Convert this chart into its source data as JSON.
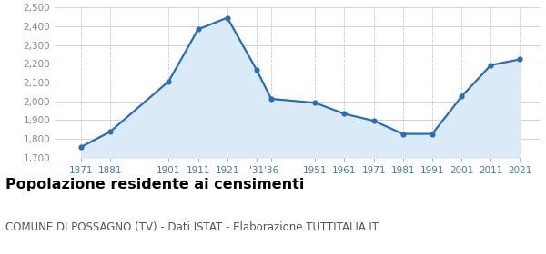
{
  "years": [
    1871,
    1881,
    1901,
    1911,
    1921,
    1931,
    1936,
    1951,
    1961,
    1971,
    1981,
    1991,
    2001,
    2011,
    2021
  ],
  "population": [
    1756,
    1838,
    2107,
    2384,
    2446,
    2168,
    2013,
    1992,
    1933,
    1896,
    1826,
    1826,
    2025,
    2193,
    2224
  ],
  "x_labels": [
    "1871",
    "1881",
    "1901",
    "1911",
    "1921",
    "'31",
    "'36",
    "1951",
    "1961",
    "1971",
    "1981",
    "1991",
    "2001",
    "2011",
    "2021"
  ],
  "ylim": [
    1700,
    2500
  ],
  "yticks": [
    1700,
    1800,
    1900,
    2000,
    2100,
    2200,
    2300,
    2400,
    2500
  ],
  "line_color": "#2a6db5",
  "fill_color": "#daeaf7",
  "marker_color": "#2a6db5",
  "grid_color": "#cccccc",
  "background_color": "#ffffff",
  "title": "Popolazione residente ai censimenti",
  "subtitle": "COMUNE DI POSSAGNO (TV) - Dati ISTAT - Elaborazione TUTTITALIA.IT",
  "title_fontsize": 11.5,
  "subtitle_fontsize": 8.5,
  "title_color": "#000000",
  "subtitle_color": "#555555",
  "tick_label_color": "#4477aa",
  "ytick_label_color": "#888888"
}
